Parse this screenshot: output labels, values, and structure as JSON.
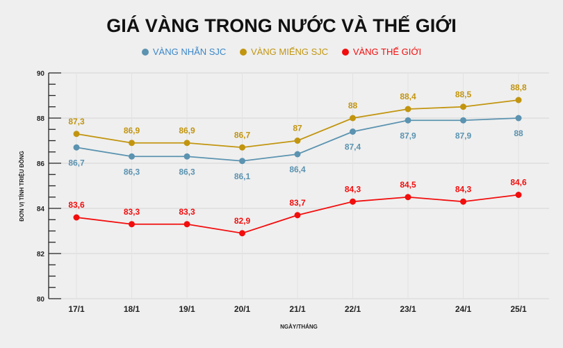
{
  "chart_data": {
    "type": "line",
    "title": "GIÁ VÀNG TRONG NƯỚC VÀ THẾ GIỚI",
    "xlabel": "NGÀY/THÁNG",
    "ylabel": "ĐƠN VỊ TÍNH TRIỆU ĐỒNG",
    "ylim": [
      80,
      90
    ],
    "yticks": [
      "80",
      "82",
      "84",
      "86",
      "88",
      "90"
    ],
    "grid": true,
    "legend": "top",
    "categories": [
      "17/1",
      "18/1",
      "19/1",
      "20/1",
      "21/1",
      "22/1",
      "23/1",
      "24/1",
      "25/1"
    ],
    "series": [
      {
        "name": "VÀNG NHẪN SJC",
        "color": "#5b93b0",
        "label_pos": "below",
        "values": [
          86.7,
          86.3,
          86.3,
          86.1,
          86.4,
          87.4,
          87.9,
          87.9,
          88
        ],
        "labels": [
          "86,7",
          "86,3",
          "86,3",
          "86,1",
          "86,4",
          "87,4",
          "87,9",
          "87,9",
          "88"
        ]
      },
      {
        "name": "VÀNG MIẾNG SJC",
        "color": "#c2950f",
        "label_pos": "above",
        "values": [
          87.3,
          86.9,
          86.9,
          86.7,
          87,
          88,
          88.4,
          88.5,
          88.8
        ],
        "labels": [
          "87,3",
          "86,9",
          "86,9",
          "86,7",
          "87",
          "88",
          "88,4",
          "88,5",
          "88,8"
        ]
      },
      {
        "name": "VÀNG THẾ GIỚI",
        "color": "#f20d0d",
        "label_pos": "above",
        "values": [
          83.6,
          83.3,
          83.3,
          82.9,
          83.7,
          84.3,
          84.5,
          84.3,
          84.6
        ],
        "labels": [
          "83,6",
          "83,3",
          "83,3",
          "82,9",
          "83,7",
          "84,3",
          "84,5",
          "84,3",
          "84,6"
        ]
      }
    ]
  }
}
